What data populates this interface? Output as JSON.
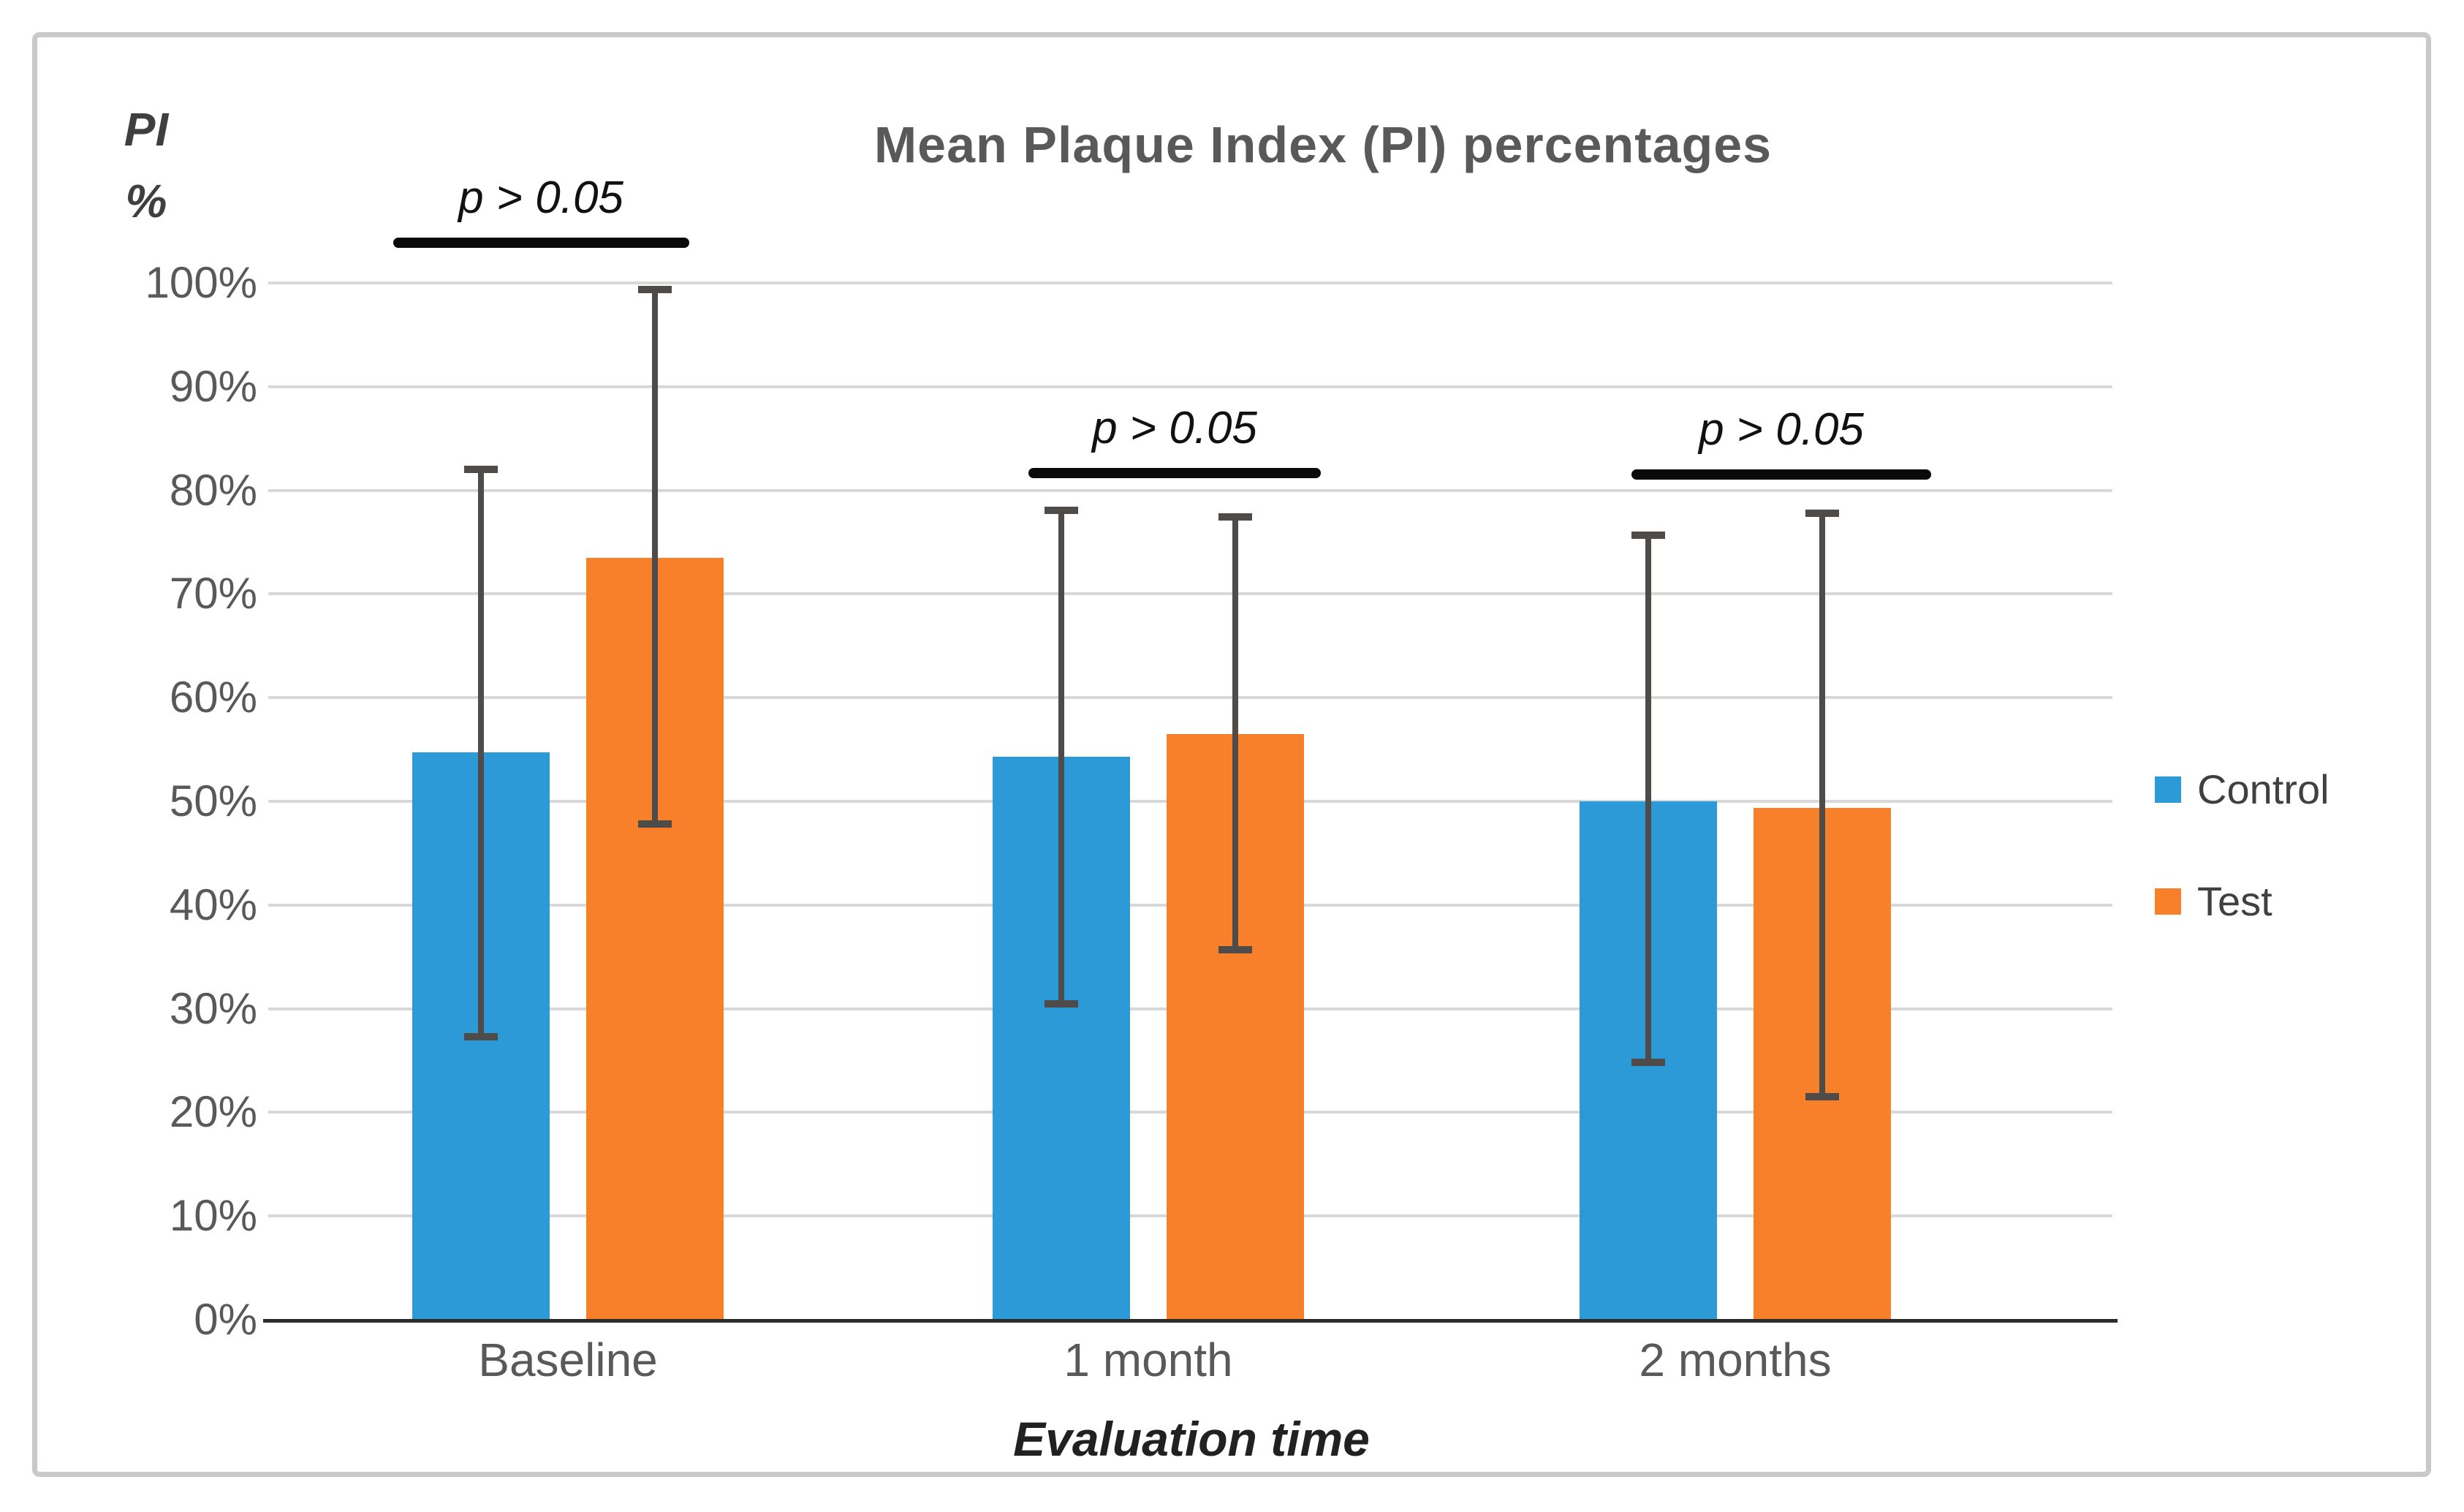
{
  "chart_data": {
    "type": "bar",
    "title": "Mean Plaque Index (PI) percentages",
    "y_axis_label_lines": [
      "PI",
      "%"
    ],
    "x_axis_label": "Evaluation time",
    "categories": [
      "Baseline",
      "1 month",
      "2 months"
    ],
    "series": [
      {
        "name": "Control",
        "color": "#2b9ad6",
        "values": [
          54.7,
          54.3,
          50.0
        ],
        "error_high": [
          82.0,
          78.1,
          75.7
        ],
        "error_low": [
          27.3,
          30.5,
          24.8
        ]
      },
      {
        "name": "Test",
        "color": "#f8802a",
        "values": [
          73.5,
          56.5,
          49.4
        ],
        "error_high": [
          99.4,
          77.4,
          77.8
        ],
        "error_low": [
          47.8,
          35.7,
          21.5
        ]
      }
    ],
    "ylim": [
      0,
      100
    ],
    "ytick_step": 10,
    "ytick_labels": [
      "0%",
      "10%",
      "20%",
      "30%",
      "40%",
      "50%",
      "60%",
      "70%",
      "80%",
      "90%",
      "100%"
    ],
    "grid": true,
    "legend_position": "right",
    "annotations": [
      {
        "text": "p > 0.05",
        "group_index": 0
      },
      {
        "text": "p > 0.05",
        "group_index": 1
      },
      {
        "text": "p > 0.05",
        "group_index": 2
      }
    ],
    "colors": {
      "control_bar": "#2b9ad6",
      "test_bar": "#f8802a",
      "error_bar": "#4e4b48",
      "gridline": "#d8d8d8",
      "axis_line": "#2b2b2b",
      "significance_bar": "#0a0a0a",
      "text": "#595959"
    }
  }
}
